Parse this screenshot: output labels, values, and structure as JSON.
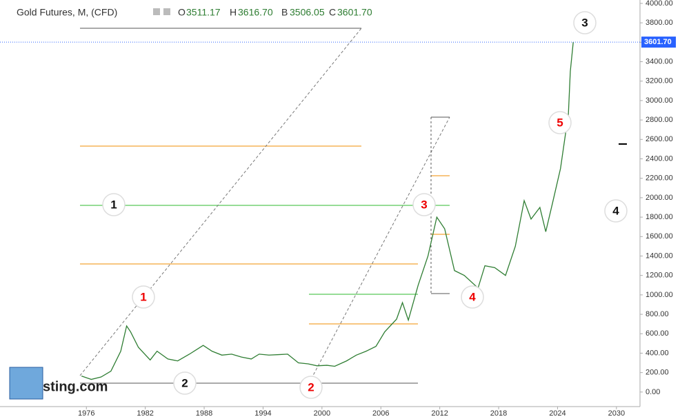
{
  "legend": {
    "symbol": "Gold Futures, M, (CFD)",
    "open_label": "O",
    "open": "3511.17",
    "high_label": "H",
    "high": "3616.70",
    "low_label": "B",
    "low": "3506.05",
    "close_label": "C",
    "close": "3601.70"
  },
  "watermark": "sting.com",
  "waves_major": [
    "1",
    "2",
    "3",
    "4"
  ],
  "waves_minor": [
    "1",
    "2",
    "3",
    "4",
    "5"
  ],
  "chart_data": {
    "type": "line",
    "x": [
      1975.5,
      1976.5,
      1977.5,
      1978.5,
      1979.5,
      1980.1,
      1980.5,
      1981.3,
      1982.5,
      1983.2,
      1984.3,
      1985.3,
      1986.5,
      1987.9,
      1988.8,
      1989.8,
      1990.8,
      1991.8,
      1992.8,
      1993.6,
      1994.6,
      1995.6,
      1996.5,
      1997.6,
      1998.6,
      1999.5,
      2000.5,
      2001.3,
      2002.5,
      2003.5,
      2004.5,
      2005.5,
      2006.4,
      2007.6,
      2008.2,
      2008.8,
      2009.8,
      2010.8,
      2011.7,
      2012.5,
      2013.5,
      2014.5,
      2015.9,
      2016.6,
      2017.6,
      2018.7,
      2019.7,
      2020.6,
      2021.3,
      2022.2,
      2022.8,
      2023.5,
      2024.3,
      2024.8,
      2025.1,
      2025.3,
      2025.6
    ],
    "series": [
      {
        "name": "Gold Futures",
        "color": "#2e7d32",
        "values": [
          165,
          130,
          155,
          215,
          420,
          680,
          620,
          460,
          330,
          420,
          340,
          320,
          390,
          480,
          420,
          380,
          390,
          360,
          340,
          390,
          380,
          385,
          390,
          300,
          290,
          270,
          275,
          265,
          320,
          380,
          420,
          470,
          620,
          750,
          920,
          740,
          1100,
          1400,
          1800,
          1680,
          1250,
          1200,
          1070,
          1300,
          1280,
          1200,
          1500,
          1970,
          1780,
          1900,
          1650,
          1950,
          2300,
          2650,
          2850,
          3300,
          3601.7
        ]
      }
    ],
    "xlim": [
      1967.2,
      2032.4
    ],
    "ylim": [
      -150,
      4035
    ],
    "xticks": [
      1976,
      1982,
      1988,
      1994,
      2000,
      2006,
      2012,
      2018,
      2024,
      2030
    ],
    "yticks": [
      {
        "value": 0,
        "label": "0.00"
      },
      {
        "value": 200,
        "label": "200.00"
      },
      {
        "value": 400,
        "label": "400.00"
      },
      {
        "value": 600,
        "label": "600.00"
      },
      {
        "value": 800,
        "label": "800.00"
      },
      {
        "value": 1000,
        "label": "1000.00"
      },
      {
        "value": 1200,
        "label": "1200.00"
      },
      {
        "value": 1400,
        "label": "1400.00"
      },
      {
        "value": 1600,
        "label": "1600.00"
      },
      {
        "value": 1800,
        "label": "1800.00"
      },
      {
        "value": 2000,
        "label": "2000.00"
      },
      {
        "value": 2200,
        "label": "2200.00"
      },
      {
        "value": 2400,
        "label": "2400.00"
      },
      {
        "value": 2600,
        "label": "2600.00"
      },
      {
        "value": 2800,
        "label": "2800.00"
      },
      {
        "value": 3000,
        "label": "3000.00"
      },
      {
        "value": 3200,
        "label": "3200.00"
      },
      {
        "value": 3400,
        "label": "3400.00"
      },
      {
        "value": 3600,
        "label": "3600.00"
      },
      {
        "value": 3800,
        "label": "3800.00"
      },
      {
        "value": 4000,
        "label": "4000.00"
      }
    ],
    "last_price": {
      "value": 3601.7,
      "label": "3601.70"
    },
    "last_price_color": "#2962ff"
  }
}
